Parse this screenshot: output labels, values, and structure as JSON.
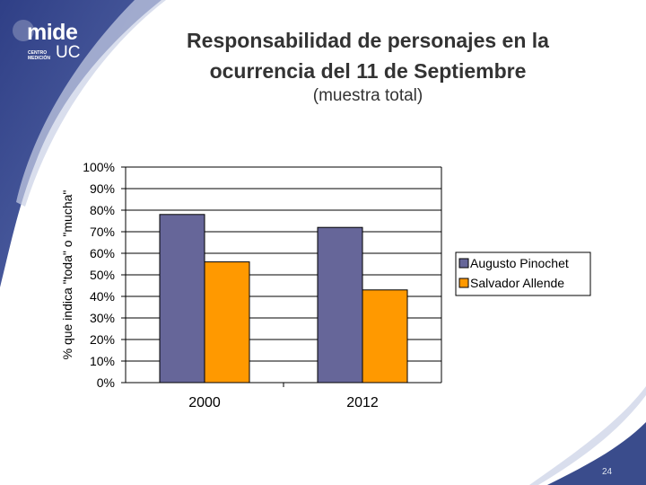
{
  "slide": {
    "title_line1": "Responsabilidad de personajes en la",
    "title_line2": "ocurrencia del 11 de Septiembre",
    "subtitle": "(muestra total)",
    "page_number": "24"
  },
  "logo": {
    "name": "mide",
    "sub": "UC",
    "tagline_line1": "CENTRO",
    "tagline_line2": "MEDICIÓN"
  },
  "colors": {
    "background_band": "#3a4c8c",
    "series_1": "#666699",
    "series_2": "#ff9900"
  },
  "chart_data": {
    "type": "bar",
    "title": "",
    "xlabel": "",
    "ylabel": "% que indica \"toda\" o \"mucha\"",
    "categories": [
      "2000",
      "2012"
    ],
    "series": [
      {
        "name": "Augusto Pinochet",
        "values": [
          78,
          72
        ]
      },
      {
        "name": "Salvador Allende",
        "values": [
          56,
          43
        ]
      }
    ],
    "ylim": [
      0,
      100
    ],
    "yticks": [
      "0%",
      "10%",
      "20%",
      "30%",
      "40%",
      "50%",
      "60%",
      "70%",
      "80%",
      "90%",
      "100%"
    ],
    "grid": true,
    "legend": "right"
  }
}
